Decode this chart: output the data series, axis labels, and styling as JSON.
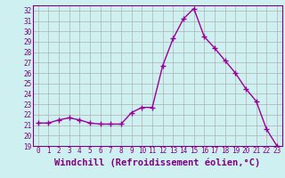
{
  "x": [
    0,
    1,
    2,
    3,
    4,
    5,
    6,
    7,
    8,
    9,
    10,
    11,
    12,
    13,
    14,
    15,
    16,
    17,
    18,
    19,
    20,
    21,
    22,
    23
  ],
  "y": [
    21.2,
    21.2,
    21.5,
    21.7,
    21.5,
    21.2,
    21.1,
    21.1,
    21.1,
    22.2,
    22.7,
    22.7,
    26.7,
    29.3,
    31.2,
    32.2,
    29.5,
    28.4,
    27.2,
    26.0,
    24.5,
    23.3,
    20.6,
    19.0
  ],
  "line_color": "#990099",
  "marker": "+",
  "marker_size": 4,
  "bg_color": "#cff0f0",
  "grid_color": "#b0b0b0",
  "xlabel": "Windchill (Refroidissement éolien,°C)",
  "ylim": [
    19,
    32.5
  ],
  "xlim": [
    -0.5,
    23.5
  ],
  "yticks": [
    19,
    20,
    21,
    22,
    23,
    24,
    25,
    26,
    27,
    28,
    29,
    30,
    31,
    32
  ],
  "xticks": [
    0,
    1,
    2,
    3,
    4,
    5,
    6,
    7,
    8,
    9,
    10,
    11,
    12,
    13,
    14,
    15,
    16,
    17,
    18,
    19,
    20,
    21,
    22,
    23
  ],
  "tick_fontsize": 5.5,
  "xlabel_fontsize": 7.5,
  "label_color": "#800080"
}
